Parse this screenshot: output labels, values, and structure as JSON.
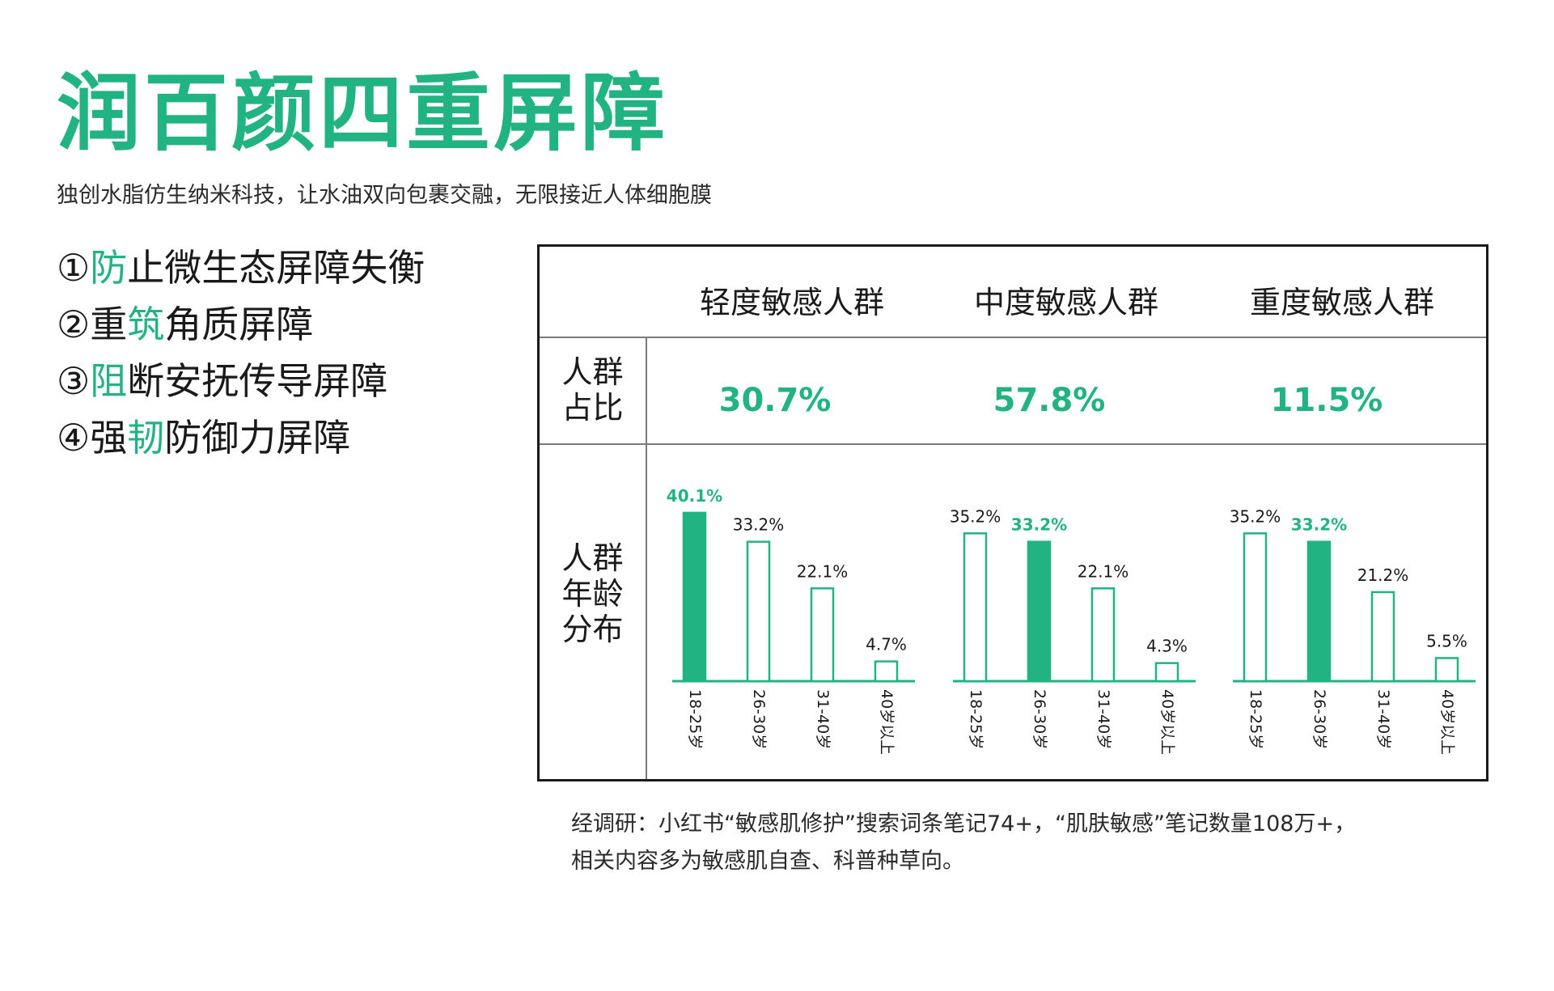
{
  "title": "润百颜四重屏障",
  "subtitle": "独创水脂仿生纳米科技，让水油双向包裹交融，无限接近人体细胞膜",
  "barriers": [
    {
      "num": "①",
      "pre": "",
      "hl": "防",
      "post": "止微生态屏障失衡"
    },
    {
      "num": "②",
      "pre": "重",
      "hl": "筑",
      "post": "角质屏障"
    },
    {
      "num": "③",
      "pre": "",
      "hl": "阻",
      "post": "断安抚传导屏障"
    },
    {
      "num": "④",
      "pre": "强",
      "hl": "韧",
      "post": "防御力屏障"
    }
  ],
  "table": {
    "columns": [
      "轻度敏感人群",
      "中度敏感人群",
      "重度敏感人群"
    ],
    "share_label": [
      "人群",
      "占比"
    ],
    "shares": [
      "30.7%",
      "57.8%",
      "11.5%"
    ],
    "age_label": [
      "人群",
      "年龄",
      "分布"
    ]
  },
  "chart_data": [
    {
      "type": "bar",
      "categories": [
        "18-25岁",
        "26-30岁",
        "31-40岁",
        "40岁以上"
      ],
      "values": [
        40.1,
        33.2,
        22.1,
        4.7
      ],
      "labels": [
        "40.1%",
        "33.2%",
        "22.1%",
        "4.7%"
      ],
      "highlight_index": 0,
      "ylim": [
        0,
        42
      ]
    },
    {
      "type": "bar",
      "categories": [
        "18-25岁",
        "26-30岁",
        "31-40岁",
        "40岁以上"
      ],
      "values": [
        35.2,
        33.2,
        22.1,
        4.3
      ],
      "labels": [
        "35.2%",
        "33.2%",
        "22.1%",
        "4.3%"
      ],
      "highlight_index": 1,
      "ylim": [
        0,
        42
      ]
    },
    {
      "type": "bar",
      "categories": [
        "18-25岁",
        "26-30岁",
        "31-40岁",
        "40岁以上"
      ],
      "values": [
        35.2,
        33.2,
        21.2,
        5.5
      ],
      "labels": [
        "35.2%",
        "33.2%",
        "21.2%",
        "5.5%"
      ],
      "highlight_index": 1,
      "ylim": [
        0,
        42
      ]
    }
  ],
  "note": [
    "经调研：小红书“敏感肌修护”搜索词条笔记74+，“肌肤敏感”笔记数量108万+，",
    "相关内容多为敏感肌自查、科普种草向。"
  ],
  "colors": {
    "accent": "#22b383",
    "text": "#1a1a1a"
  }
}
